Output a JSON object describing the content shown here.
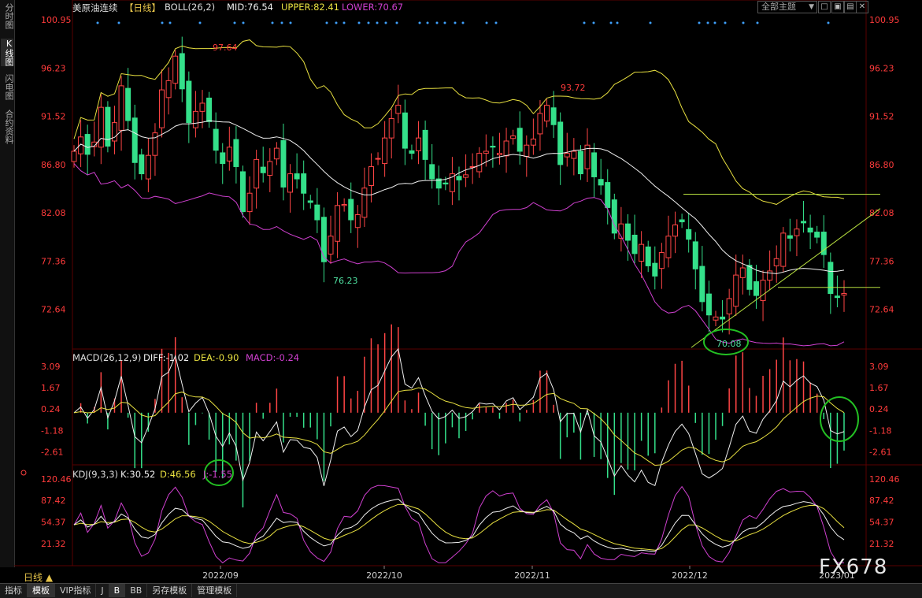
{
  "left_tabs": [
    {
      "label": "分时图",
      "active": false
    },
    {
      "label": "K线图",
      "active": true
    },
    {
      "label": "闪电图",
      "active": false
    },
    {
      "label": "合约资料",
      "active": false
    }
  ],
  "header": {
    "title": "美原油连续",
    "period": "【日线】",
    "boll_label": "BOLL(26,2)",
    "mid": "MID:76.54",
    "upper": "UPPER:82.41",
    "lower": "LOWER:70.67",
    "theme": "全部主题",
    "theme_arrow": "▼"
  },
  "window_buttons": [
    "□",
    "▣",
    "▤",
    "✕"
  ],
  "price_axis": [
    "100.95",
    "96.23",
    "91.52",
    "86.80",
    "82.08",
    "77.36",
    "72.64"
  ],
  "annotations": {
    "high1": "97.64",
    "high2": "93.72",
    "low1": "76.23",
    "low2": "70.08"
  },
  "macd": {
    "label": "MACD(26,12,9)",
    "diff": "DIFF:-1.02",
    "dea": "DEA:-0.90",
    "macd": "MACD:-0.24",
    "axis": [
      "3.09",
      "1.67",
      "0.24",
      "-1.18",
      "-2.61"
    ]
  },
  "kdj": {
    "label": "KDJ(9,3,3)",
    "k": "K:30.52",
    "d": "D:46.56",
    "j": "J:-1.55",
    "axis": [
      "120.46",
      "87.42",
      "54.37",
      "21.32"
    ]
  },
  "date_axis": [
    "2022/09",
    "2022/10",
    "2022/11",
    "2022/12",
    "2023/01"
  ],
  "period_label": "日线 ▲",
  "bottom_tabs": [
    {
      "label": "指标",
      "selected": false
    },
    {
      "label": "模板",
      "selected": true
    },
    {
      "label": "VIP指标",
      "selected": false
    },
    {
      "label": "J",
      "selected": false
    },
    {
      "label": "B",
      "selected": true
    },
    {
      "label": "BB",
      "selected": false
    },
    {
      "label": "另存模板",
      "selected": false
    },
    {
      "label": "管理模板",
      "selected": false
    }
  ],
  "watermark": "FX678",
  "colors": {
    "up": "#ff4545",
    "down": "#34e08a",
    "mid": "#f0f0f0",
    "upper": "#e8e040",
    "lower": "#d040d0",
    "axis_text": "#ff3b3b",
    "trend": "#b8e040",
    "highlight": "#23c023"
  },
  "chart_data": {
    "type": "candlestick",
    "y_range": [
      69.0,
      101.5
    ],
    "x_labels": [
      "2022/09",
      "2022/10",
      "2022/11",
      "2022/12",
      "2023/01"
    ],
    "closes": [
      88.1,
      89.5,
      87.8,
      89.0,
      92.4,
      88.6,
      90.9,
      94.5,
      91.1,
      87.0,
      85.9,
      87.7,
      89.9,
      94.1,
      95.0,
      97.4,
      94.2,
      90.9,
      92.0,
      92.8,
      91.0,
      88.2,
      86.9,
      88.5,
      86.6,
      82.2,
      84.0,
      87.3,
      86.0,
      87.1,
      88.4,
      84.6,
      85.9,
      85.4,
      84.0,
      83.1,
      81.4,
      77.3,
      79.8,
      82.8,
      82.9,
      81.4,
      81.9,
      84.5,
      86.6,
      87.4,
      89.4,
      91.3,
      92.6,
      88.4,
      87.9,
      89.4,
      87.3,
      85.4,
      84.5,
      84.9,
      85.9,
      85.3,
      85.8,
      86.6,
      87.9,
      88.1,
      88.5,
      87.9,
      89.1,
      89.6,
      88.1,
      88.7,
      89.3,
      91.8,
      92.6,
      90.7,
      86.8,
      87.9,
      88.1,
      85.9,
      88.7,
      85.6,
      84.8,
      82.6,
      80.1,
      81.0,
      79.4,
      78.1,
      79.0,
      76.9,
      75.9,
      78.2,
      79.8,
      80.9,
      81.2,
      79.5,
      76.6,
      73.4,
      72.1,
      71.9,
      71.7,
      73.7,
      76.0,
      76.7,
      74.6,
      74.0,
      75.5,
      76.4,
      77.6,
      80.1,
      79.6,
      80.5,
      81.1,
      80.2,
      79.7,
      78.0,
      74.2,
      73.8,
      74.2
    ],
    "bollinger": {
      "mid": 76.54,
      "upper": 82.41,
      "lower": 70.67
    },
    "labels": {
      "high1": 97.64,
      "high2": 93.72,
      "low1": 76.23,
      "low2": 70.08
    },
    "macd": {
      "diff": -1.02,
      "dea": -0.9,
      "macd": -0.24,
      "axis": [
        3.09,
        1.67,
        0.24,
        -1.18,
        -2.61
      ]
    },
    "kdj": {
      "k": 30.52,
      "d": 46.56,
      "j": -1.55,
      "axis": [
        120.46,
        87.42,
        54.37,
        21.32
      ]
    }
  }
}
